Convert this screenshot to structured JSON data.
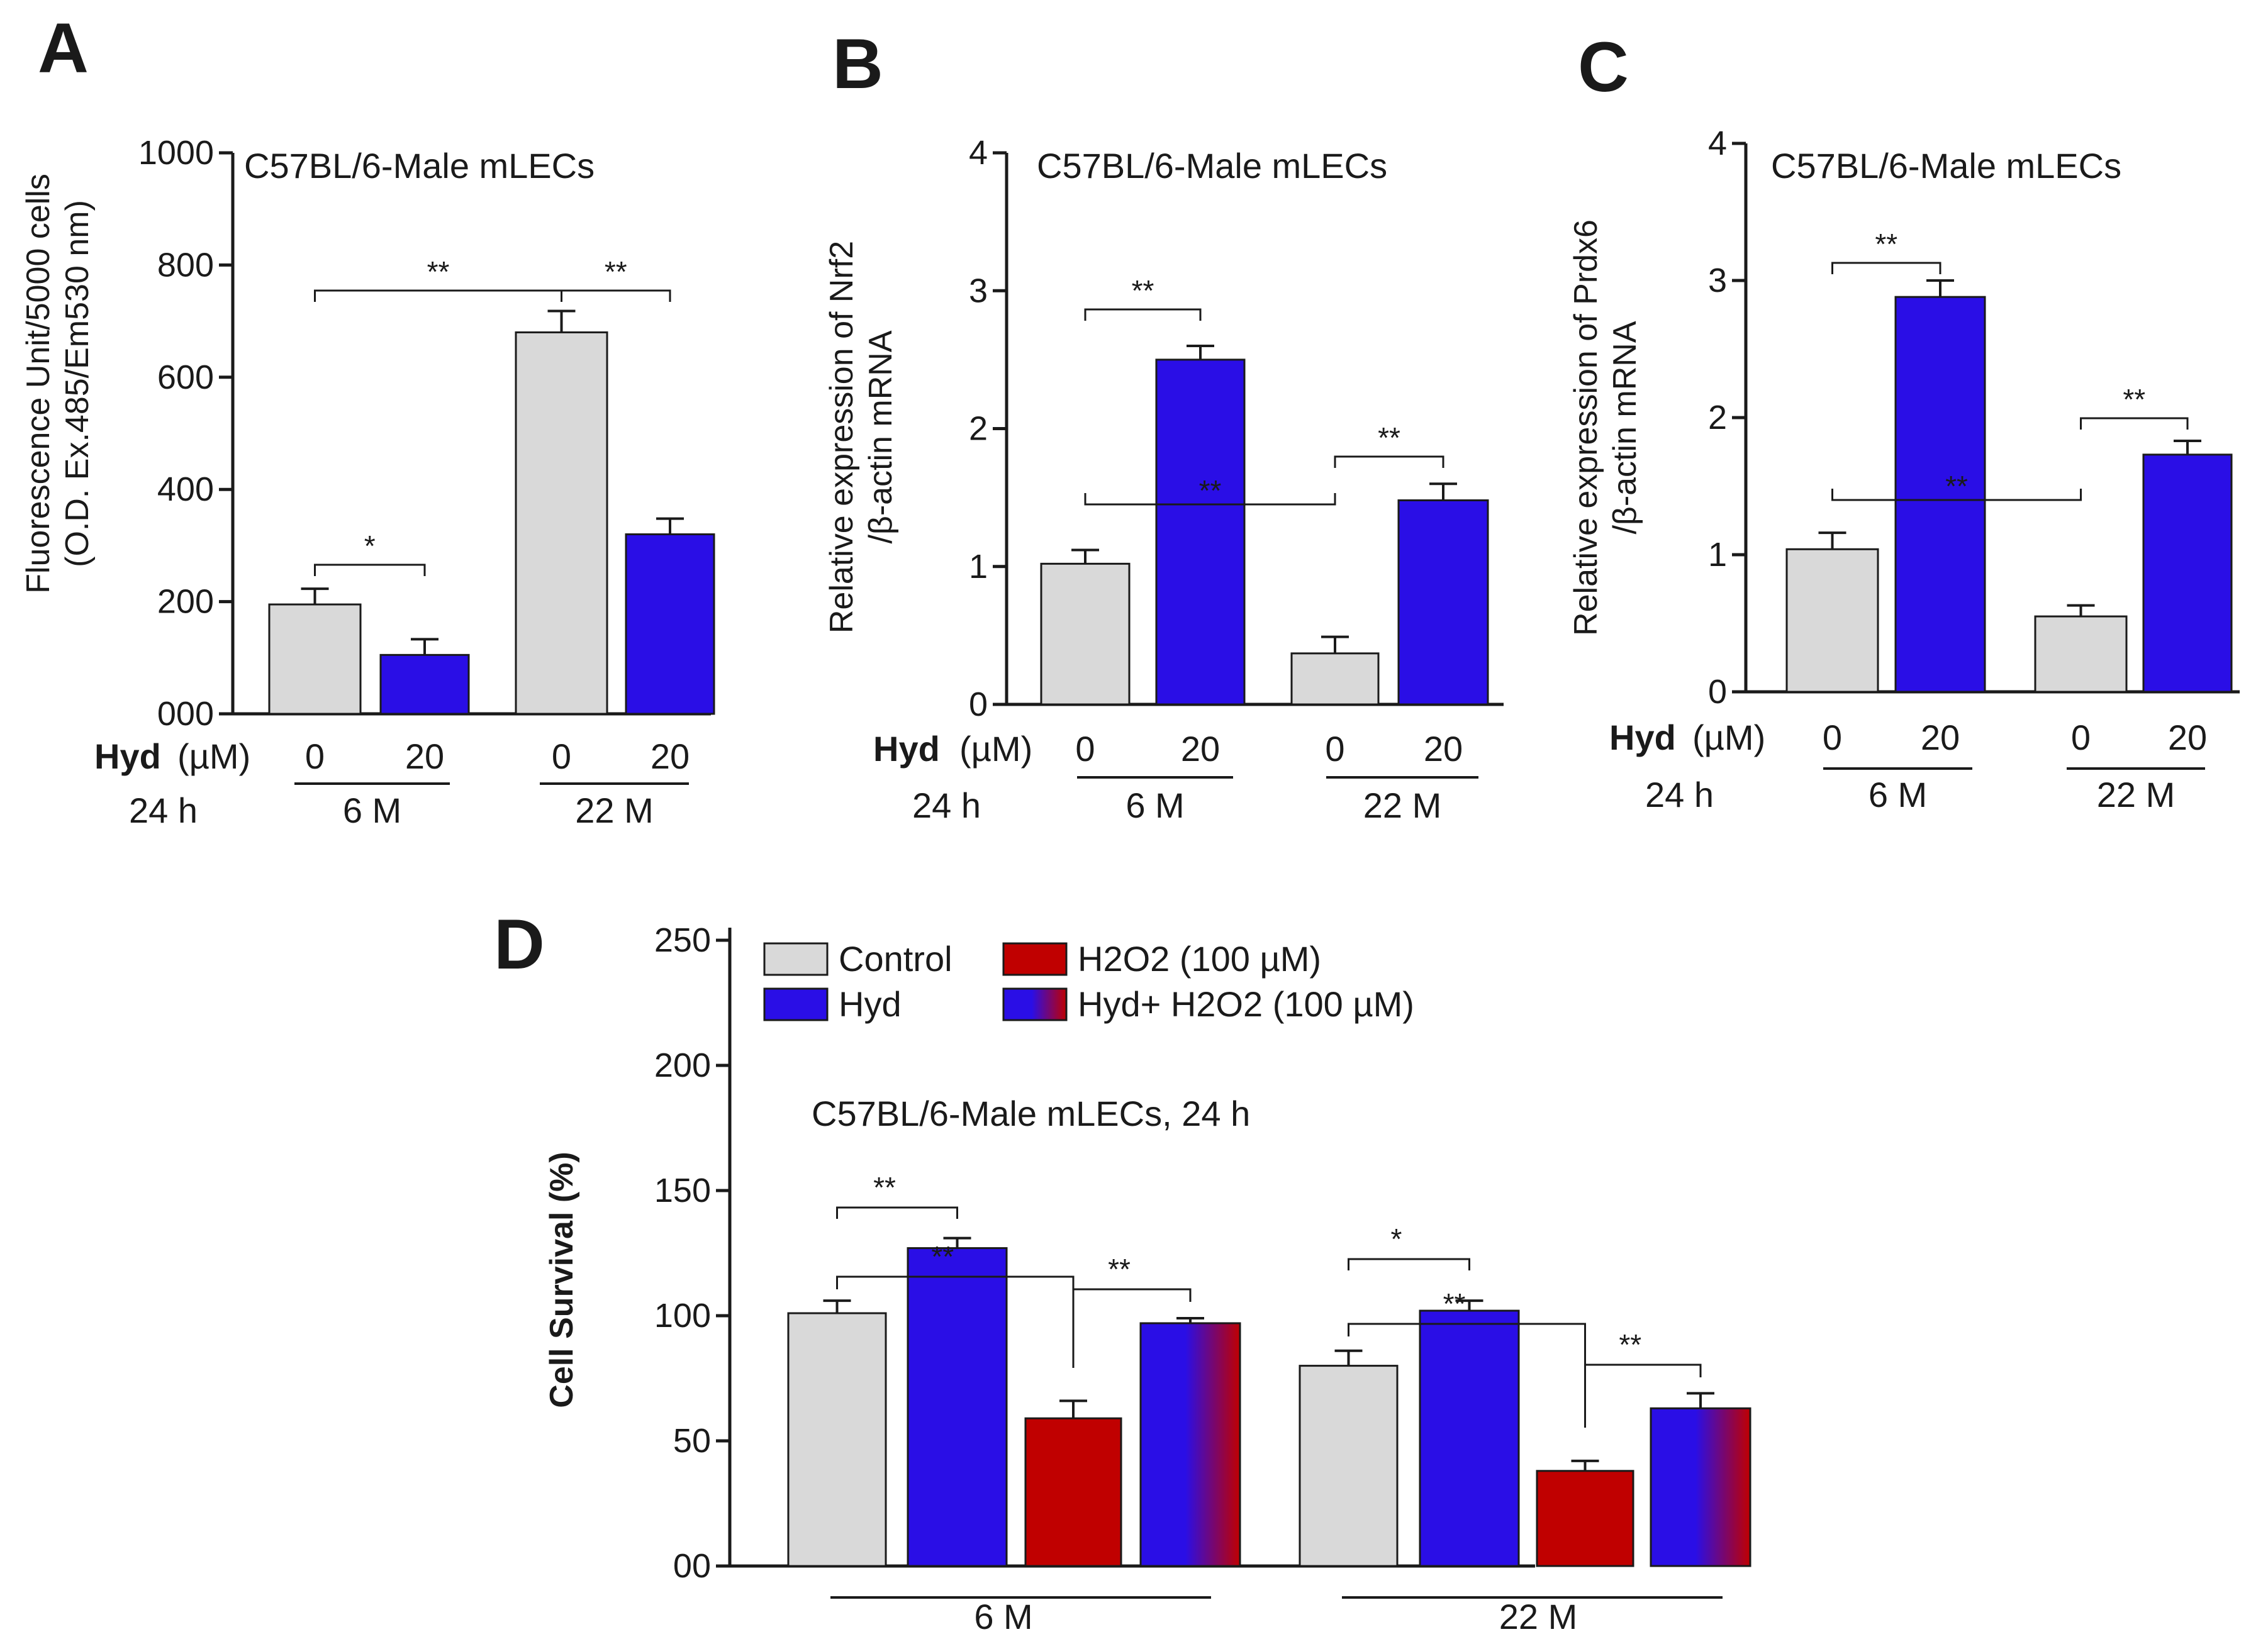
{
  "colors": {
    "control": "#d9d9d9",
    "hyd": "#2a0ee6",
    "h2o2": "#c00000",
    "hyd_h2o2_start": "#2a0ee6",
    "hyd_h2o2_end": "#c00000"
  },
  "chart_data": [
    {
      "panel": "A",
      "type": "bar",
      "title": "C57BL/6-Male mLECs",
      "ylabel_line1": "Fluorescence Unit/5000 cells",
      "ylabel_line2": "(O.D. Ex.485/Em530 nm)",
      "ylim": [
        0,
        1000
      ],
      "yticks": [
        "000",
        "200",
        "400",
        "600",
        "800",
        "1000"
      ],
      "treatment_label": "Hyd",
      "treatment_unit": "(µM)",
      "time_label": "24 h",
      "groups": [
        "6 M",
        "22 M"
      ],
      "doses": [
        "0",
        "20",
        "0",
        "20"
      ],
      "values": [
        195,
        105,
        680,
        320
      ],
      "errors": [
        28,
        28,
        38,
        28
      ],
      "significance": [
        {
          "label": "*"
        },
        {
          "label": "**"
        },
        {
          "label": "**"
        }
      ]
    },
    {
      "panel": "B",
      "type": "bar",
      "title": "C57BL/6-Male mLECs",
      "ylabel_line1": "Relative expression of Nrf2",
      "ylabel_line2": "/β-actin mRNA",
      "ylim": [
        0,
        4
      ],
      "yticks": [
        "0",
        "1",
        "2",
        "3",
        "4"
      ],
      "treatment_label": "Hyd",
      "treatment_unit": "(µM)",
      "time_label": "24 h",
      "groups": [
        "6 M",
        "22 M"
      ],
      "doses": [
        "0",
        "20",
        "0",
        "20"
      ],
      "values": [
        1.02,
        2.5,
        0.37,
        1.48
      ],
      "errors": [
        0.1,
        0.1,
        0.12,
        0.12
      ],
      "significance": [
        {
          "label": "**"
        },
        {
          "label": "**"
        },
        {
          "label": "**"
        }
      ]
    },
    {
      "panel": "C",
      "type": "bar",
      "title": "C57BL/6-Male mLECs",
      "ylabel_line1": "Relative expression of Prdx6",
      "ylabel_line2": "/β-actin mRNA",
      "ylim": [
        0,
        4
      ],
      "yticks": [
        "0",
        "1",
        "2",
        "3",
        "4"
      ],
      "treatment_label": "Hyd",
      "treatment_unit": "(µM)",
      "time_label": "24 h",
      "groups": [
        "6 M",
        "22 M"
      ],
      "doses": [
        "0",
        "20",
        "0",
        "20"
      ],
      "values": [
        1.04,
        2.88,
        0.55,
        1.73
      ],
      "errors": [
        0.12,
        0.12,
        0.08,
        0.1
      ],
      "significance": [
        {
          "label": "**"
        },
        {
          "label": "**"
        },
        {
          "label": "**"
        }
      ]
    },
    {
      "panel": "D",
      "type": "bar",
      "title": "C57BL/6-Male mLECs, 24 h",
      "ylabel": "Cell Survival  (%)",
      "ylim": [
        0,
        250
      ],
      "yticks": [
        "00",
        "50",
        "100",
        "150",
        "200",
        "250"
      ],
      "groups": [
        "6 M",
        "22 M"
      ],
      "legend": [
        "Control",
        "Hyd",
        "H2O2 (100 µM)",
        "Hyd+ H2O2 (100 µM)"
      ],
      "series": [
        {
          "name": "Control",
          "values": [
            101,
            80
          ],
          "errors": [
            5,
            6
          ]
        },
        {
          "name": "Hyd",
          "values": [
            127,
            102
          ],
          "errors": [
            4,
            4
          ]
        },
        {
          "name": "H2O2 (100 µM)",
          "values": [
            59,
            38
          ],
          "errors": [
            7,
            4
          ]
        },
        {
          "name": "Hyd+ H2O2 (100 µM)",
          "values": [
            97,
            63
          ],
          "errors": [
            2,
            6
          ]
        }
      ],
      "significance": [
        {
          "label": "**"
        },
        {
          "label": "**"
        },
        {
          "label": "**"
        },
        {
          "label": "*"
        },
        {
          "label": "**"
        },
        {
          "label": "**"
        }
      ]
    }
  ]
}
